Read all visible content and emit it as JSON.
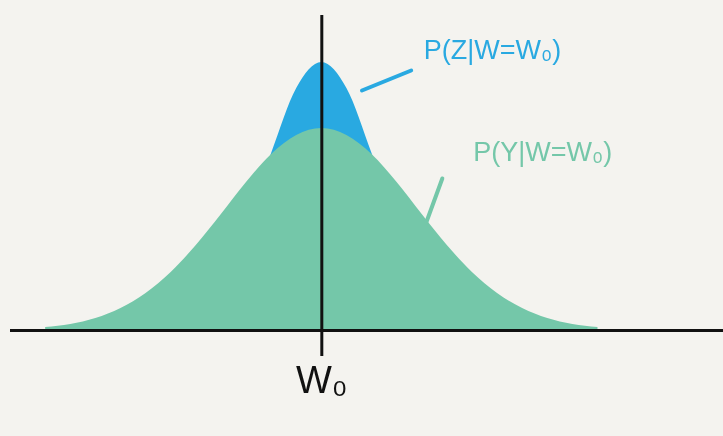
{
  "chart_data": {
    "type": "area",
    "x": [
      -5.5,
      -5,
      -4.5,
      -4,
      -3.5,
      -3,
      -2.5,
      -2,
      -1.5,
      -1,
      -0.5,
      0,
      0.5,
      1,
      1.5,
      2,
      2.5,
      3,
      3.5,
      4,
      4.5,
      5,
      5.5
    ],
    "series": [
      {
        "name": "P(Z|W=W₀)",
        "color": "#29a9e1",
        "values": [
          0,
          0,
          0,
          0,
          0.02,
          0.07,
          0.2,
          0.51,
          1.06,
          1.77,
          2.42,
          2.68,
          2.42,
          1.77,
          1.06,
          0.51,
          0.2,
          0.07,
          0.02,
          0,
          0,
          0,
          0
        ]
      },
      {
        "name": "P(Y|W=W₀)",
        "color": "#74c7a9",
        "values": [
          0.03,
          0.06,
          0.12,
          0.22,
          0.37,
          0.58,
          0.85,
          1.16,
          1.48,
          1.76,
          1.95,
          2.02,
          1.95,
          1.76,
          1.48,
          1.16,
          0.85,
          0.58,
          0.37,
          0.22,
          0.12,
          0.06,
          0.03
        ]
      }
    ],
    "xlim": [
      -6.2,
      8
    ],
    "ylim": [
      0,
      3.15
    ],
    "xticks": [
      {
        "value": 0,
        "label": "W₀"
      }
    ],
    "yticks": [],
    "tick_labels": "x"
  }
}
